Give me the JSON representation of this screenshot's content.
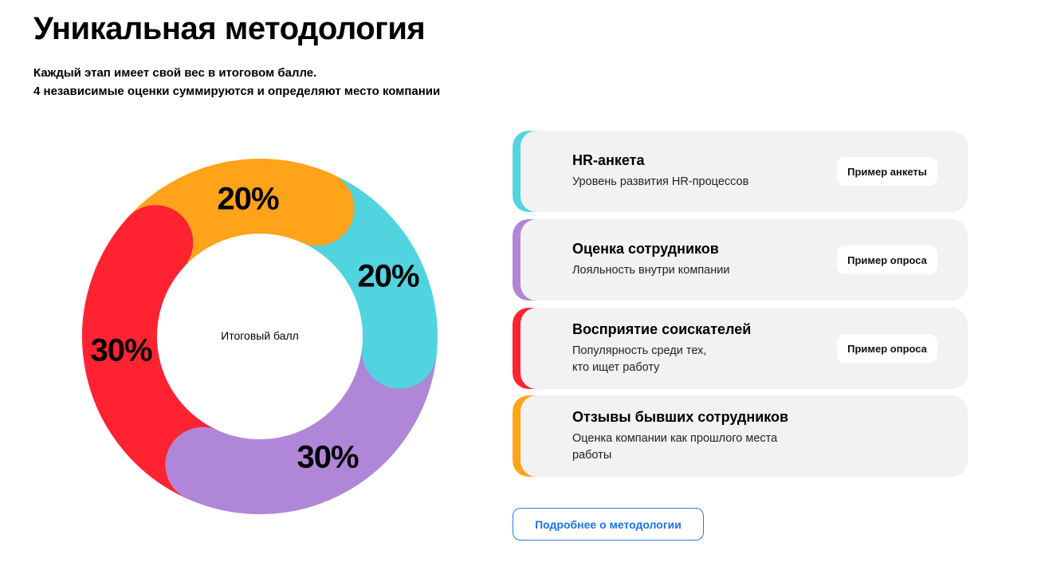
{
  "header": {
    "title": "Уникальная методология",
    "subtitle_line1": "Каждый этап имеет свой вес в итоговом балле.",
    "subtitle_line2": "4 независимые оценки суммируются и определяют место компании"
  },
  "chart_data": {
    "type": "pie",
    "center_label": "Итоговый балл",
    "slices": [
      {
        "label": "20%",
        "value": 20,
        "color": "#52d4e0",
        "category": "HR-анкета"
      },
      {
        "label": "30%",
        "value": 30,
        "color": "#b086d8",
        "category": "Оценка сотрудников"
      },
      {
        "label": "30%",
        "value": 30,
        "color": "#ff2332",
        "category": "Восприятие соискателей"
      },
      {
        "label": "20%",
        "value": 20,
        "color": "#ffa31a",
        "category": "Отзывы бывших сотрудников"
      }
    ]
  },
  "cards": [
    {
      "title": "HR-анкета",
      "subtitle": "Уровень развития HR-процессов",
      "button": "Пример анкеты",
      "color": "#52d4e0"
    },
    {
      "title": "Оценка сотрудников",
      "subtitle": "Лояльность внутри компании",
      "button": "Пример опроса",
      "color": "#b086d8"
    },
    {
      "title": "Восприятие соискателей",
      "subtitle": "Популярность среди тех,\nкто ищет работу",
      "button": "Пример опроса",
      "color": "#ff2332"
    },
    {
      "title": "Отзывы бывших сотрудников",
      "subtitle": "Оценка компании как прошлого места\nработы",
      "color": "#ffa31a"
    }
  ],
  "more_button": "Подробнее о методологии"
}
